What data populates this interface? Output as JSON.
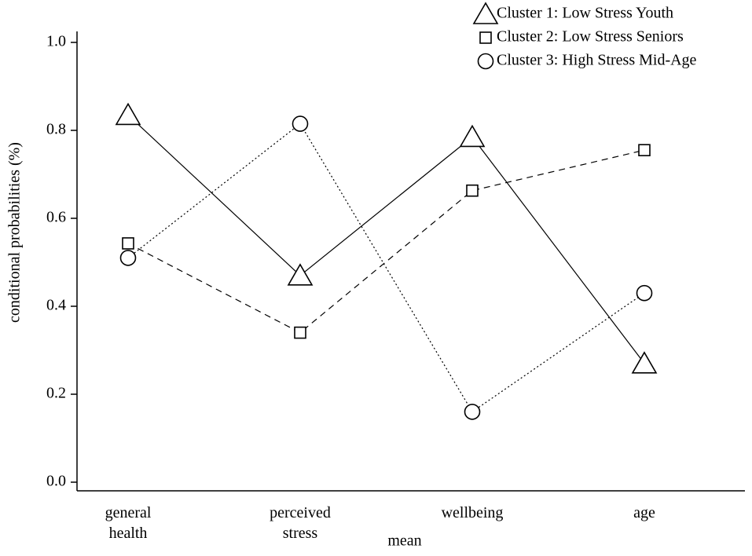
{
  "chart_data": {
    "type": "line",
    "x_label": "mean",
    "y_label": "conditional probabilities (%)",
    "categories": [
      "general health",
      "perceived stress",
      "wellbeing",
      "age"
    ],
    "ylim": [
      0,
      1
    ],
    "yticks": [
      {
        "value": 0,
        "label": "0.0"
      },
      {
        "value": 0.2,
        "label": "0.2"
      },
      {
        "value": 0.4,
        "label": "0.4"
      },
      {
        "value": 0.6,
        "label": "0.6"
      },
      {
        "value": 0.8,
        "label": "0.8"
      },
      {
        "value": 1,
        "label": "1.0"
      }
    ],
    "series": [
      {
        "name": "Cluster 1: Low Stress Youth",
        "color": "#000000",
        "marker": "triangle",
        "line_style": "solid",
        "values": [
          0.835,
          0.47,
          0.785,
          0.27
        ]
      },
      {
        "name": "Cluster 2: Low Stress Seniors",
        "color": "#000000",
        "marker": "square",
        "line_style": "dashed",
        "values": [
          0.543,
          0.34,
          0.663,
          0.755
        ]
      },
      {
        "name": "Cluster 3: High Stress Mid-Age",
        "color": "#000000",
        "marker": "circle",
        "line_style": "dotted",
        "values": [
          0.51,
          0.815,
          0.16,
          0.43
        ]
      }
    ]
  }
}
